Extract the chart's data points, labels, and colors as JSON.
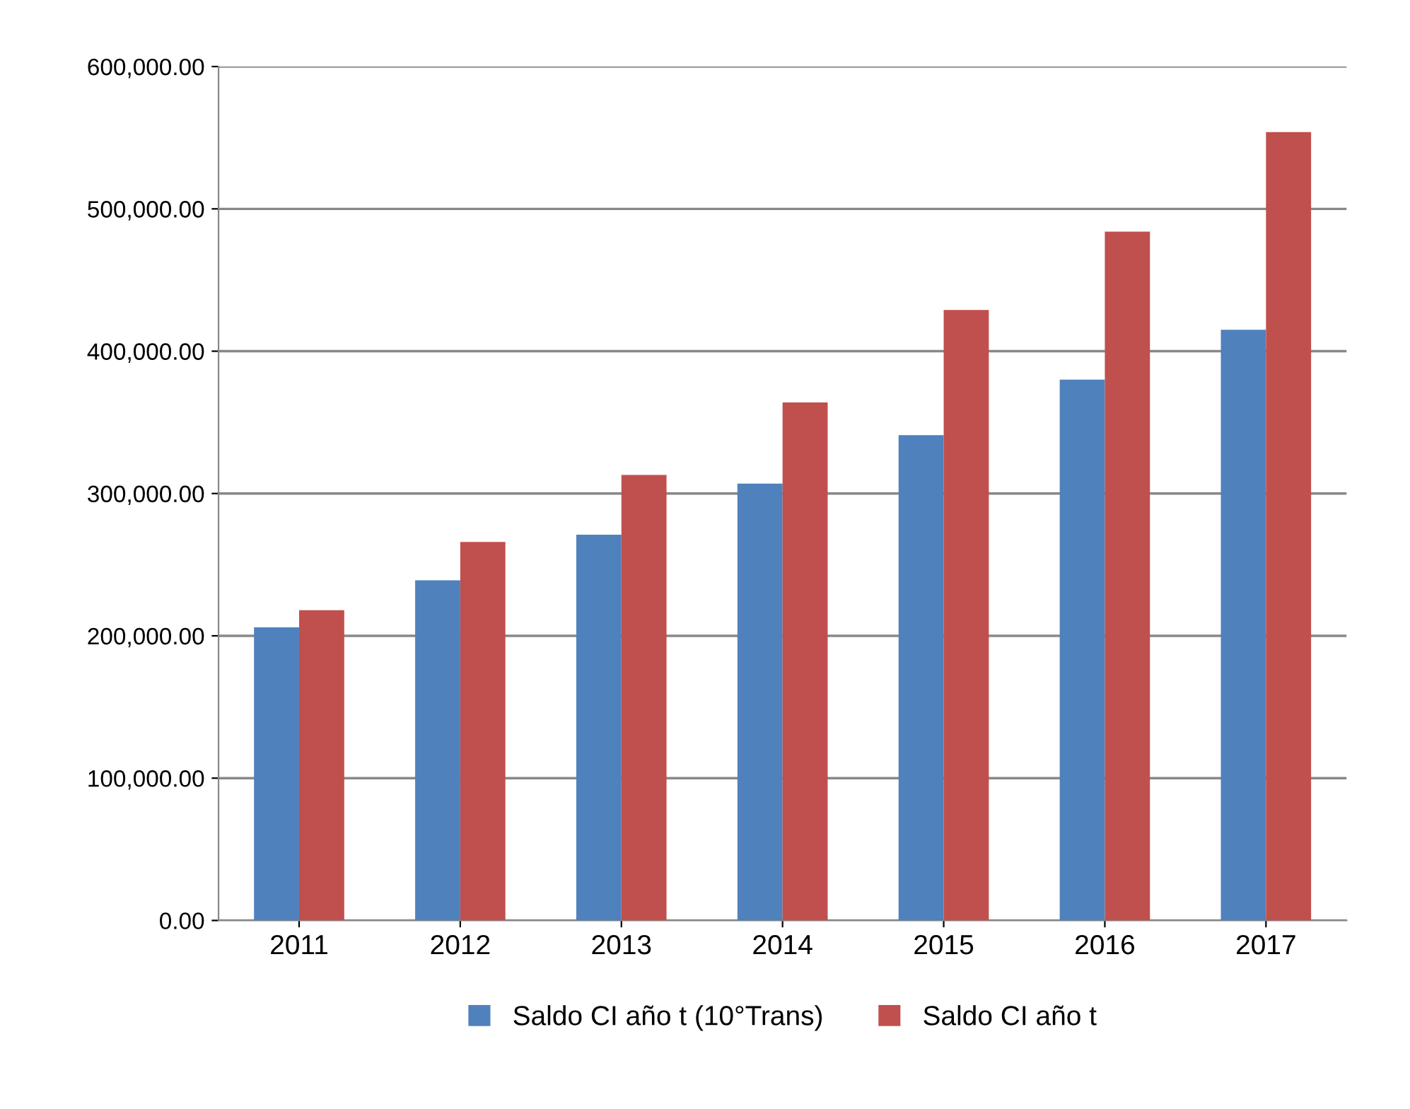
{
  "chart_data": {
    "type": "bar",
    "categories": [
      "2011",
      "2012",
      "2013",
      "2014",
      "2015",
      "2016",
      "2017"
    ],
    "series": [
      {
        "name": "Saldo CI año t (10°Trans)",
        "color": "#4f81bd",
        "values": [
          206000,
          239000,
          271000,
          307000,
          341000,
          380000,
          415000
        ]
      },
      {
        "name": "Saldo CI año t",
        "color": "#c0504d",
        "values": [
          218000,
          266000,
          313000,
          364000,
          429000,
          484000,
          554000
        ]
      }
    ],
    "ylim": [
      0,
      600000
    ],
    "yticks": [
      {
        "value": 0,
        "label": "0.00"
      },
      {
        "value": 100000,
        "label": "100,000.00"
      },
      {
        "value": 200000,
        "label": "200,000.00"
      },
      {
        "value": 300000,
        "label": "300,000.00"
      },
      {
        "value": 400000,
        "label": "400,000.00"
      },
      {
        "value": 500000,
        "label": "500,000.00"
      },
      {
        "value": 600000,
        "label": "600,000.00"
      }
    ],
    "grid": "y",
    "legend": "bottom"
  }
}
